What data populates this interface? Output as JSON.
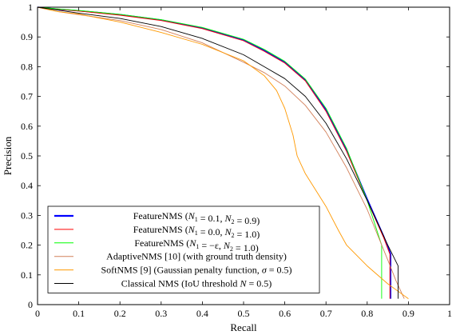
{
  "chart_data": {
    "type": "line",
    "xlabel": "Recall",
    "ylabel": "Precision",
    "xlim": [
      0,
      1
    ],
    "ylim": [
      0,
      1
    ],
    "xticks": [
      "0",
      "0.1",
      "0.2",
      "0.3",
      "0.4",
      "0.5",
      "0.6",
      "0.7",
      "0.8",
      "0.9",
      "1"
    ],
    "yticks": [
      "0",
      "0.1",
      "0.2",
      "0.3",
      "0.4",
      "0.5",
      "0.6",
      "0.7",
      "0.8",
      "0.9",
      "1"
    ],
    "grid": false,
    "legend_position": "bottom-left",
    "series": [
      {
        "name": "FeatureNMS (N1 = 0.1, N2 = 0.9)",
        "legend": {
          "pre": "FeatureNMS (",
          "a": "N",
          "a_sub": "1",
          "a_val": " = 0.1, ",
          "b": "N",
          "b_sub": "2",
          "b_val": " = 0.9)"
        },
        "color": "#0000ff",
        "bold": true,
        "x": [
          0,
          0.05,
          0.1,
          0.2,
          0.3,
          0.4,
          0.5,
          0.55,
          0.6,
          0.65,
          0.7,
          0.75,
          0.8,
          0.84,
          0.857,
          0.857
        ],
        "y": [
          1,
          0.993,
          0.988,
          0.975,
          0.957,
          0.93,
          0.89,
          0.855,
          0.815,
          0.755,
          0.655,
          0.52,
          0.355,
          0.23,
          0.17,
          0.02
        ]
      },
      {
        "name": "FeatureNMS (N1 = 0.0, N2 = 1.0)",
        "legend": {
          "pre": "FeatureNMS (",
          "a": "N",
          "a_sub": "1",
          "a_val": " = 0.0, ",
          "b": "N",
          "b_sub": "2",
          "b_val": " = 1.0)"
        },
        "color": "#ff0000",
        "bold": false,
        "x": [
          0,
          0.05,
          0.1,
          0.2,
          0.3,
          0.4,
          0.5,
          0.55,
          0.6,
          0.65,
          0.7,
          0.75,
          0.8,
          0.84,
          0.855,
          0.855
        ],
        "y": [
          1,
          0.993,
          0.987,
          0.973,
          0.955,
          0.928,
          0.887,
          0.852,
          0.812,
          0.752,
          0.65,
          0.515,
          0.35,
          0.225,
          0.17,
          0.02
        ]
      },
      {
        "name": "FeatureNMS (N1 = -ε, N2 = 1.0)",
        "legend": {
          "pre": "FeatureNMS (",
          "a": "N",
          "a_sub": "1",
          "a_val": " = −ε, ",
          "b": "N",
          "b_sub": "2",
          "b_val": " = 1.0)"
        },
        "color": "#00ff00",
        "bold": false,
        "x": [
          0,
          0.05,
          0.1,
          0.2,
          0.3,
          0.4,
          0.5,
          0.55,
          0.6,
          0.65,
          0.7,
          0.75,
          0.8,
          0.835,
          0.835
        ],
        "y": [
          1,
          0.994,
          0.989,
          0.976,
          0.958,
          0.932,
          0.892,
          0.858,
          0.818,
          0.758,
          0.66,
          0.525,
          0.35,
          0.2,
          0.02
        ]
      },
      {
        "name": "AdaptiveNMS [10] (with ground truth density)",
        "legend": {
          "pre": "AdaptiveNMS [10] (with ground truth density)"
        },
        "color": "#d2805a",
        "bold": false,
        "x": [
          0,
          0.05,
          0.1,
          0.2,
          0.3,
          0.4,
          0.5,
          0.55,
          0.6,
          0.65,
          0.7,
          0.75,
          0.8,
          0.85,
          0.87,
          0.89
        ],
        "y": [
          1,
          0.985,
          0.975,
          0.955,
          0.925,
          0.88,
          0.815,
          0.78,
          0.735,
          0.67,
          0.58,
          0.46,
          0.32,
          0.15,
          0.08,
          0.02
        ]
      },
      {
        "name": "SoftNMS [9] (Gaussian penalty function, σ = 0.5)",
        "legend": {
          "pre": "SoftNMS [9] (Gaussian penalty function, ",
          "sigma": "σ",
          "sigma_val": " = 0.5)"
        },
        "color": "#ff9900",
        "bold": false,
        "x": [
          0,
          0.05,
          0.1,
          0.2,
          0.3,
          0.4,
          0.5,
          0.55,
          0.58,
          0.6,
          0.62,
          0.63,
          0.64,
          0.65,
          0.7,
          0.73,
          0.75,
          0.8,
          0.85,
          0.9
        ],
        "y": [
          1,
          0.985,
          0.977,
          0.95,
          0.915,
          0.875,
          0.82,
          0.77,
          0.72,
          0.66,
          0.57,
          0.5,
          0.47,
          0.44,
          0.33,
          0.25,
          0.2,
          0.13,
          0.07,
          0.02
        ]
      },
      {
        "name": "Classical NMS (IoU threshold N = 0.5)",
        "legend": {
          "pre": "Classical NMS (IoU threshold ",
          "n": "N",
          "n_val": " = 0.5)"
        },
        "color": "#000000",
        "bold": false,
        "x": [
          0,
          0.05,
          0.1,
          0.2,
          0.3,
          0.4,
          0.5,
          0.55,
          0.6,
          0.65,
          0.7,
          0.75,
          0.8,
          0.85,
          0.875,
          0.875
        ],
        "y": [
          1,
          0.99,
          0.98,
          0.962,
          0.935,
          0.895,
          0.84,
          0.8,
          0.76,
          0.7,
          0.61,
          0.49,
          0.35,
          0.2,
          0.13,
          0.02
        ]
      }
    ]
  }
}
